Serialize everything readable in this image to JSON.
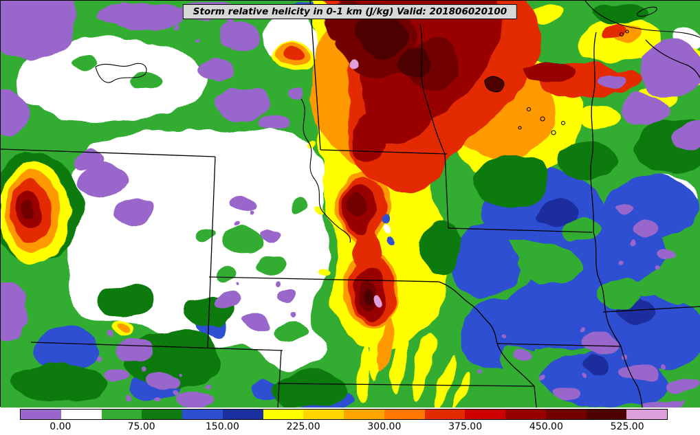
{
  "title_bar": {
    "text": "Storm relative helicity in 0-1 km (J/kg) Valid: 201806020100"
  },
  "chart_data": {
    "type": "heatmap",
    "title": "Storm relative helicity in 0-1 km (J/kg)",
    "valid_time": "201806020100",
    "units": "J/kg",
    "grid": false,
    "colorbar": {
      "orientation": "horizontal",
      "position": "bottom",
      "tick_labels": [
        "0.00",
        "75.00",
        "150.00",
        "225.00",
        "300.00",
        "375.00",
        "450.00",
        "525.00"
      ],
      "tick_values": [
        0,
        75,
        150,
        225,
        300,
        375,
        450,
        525
      ],
      "bin_width": 37.5,
      "range": [
        -37.5,
        562.5
      ],
      "levels": [
        -37.5,
        0,
        37.5,
        75,
        112.5,
        150,
        187.5,
        225,
        262.5,
        300,
        337.5,
        375,
        412.5,
        450,
        487.5,
        525,
        562.5
      ],
      "colors": [
        "#9966cc",
        "#ffffff",
        "#33ad33",
        "#117a11",
        "#2d4fd2",
        "#1b2f9e",
        "#ffff00",
        "#ffd700",
        "#ffa500",
        "#ff7700",
        "#e32b00",
        "#cc0000",
        "#990000",
        "#730000",
        "#4d0000",
        "#dda0dd"
      ]
    },
    "field_summary": [
      "Broad maximum exceeding 450-525 J/kg (dark red / maroon) in the upper-center of the domain, extending east-southeast as a weakening red/orange/yellow band",
      "North-south oriented band of 300-525+ J/kg cores through the center of the domain with small >525 (pink) pockets",
      "Secondary maximum (orange/red core) at the left edge of the domain",
      "Large near-zero region (white, 0-37.5 J/kg) with scattered negative (purple) pockets over the west-central domain",
      "Moderate 75-150 J/kg (blue) region over the right third with scattered purple (negative) speckles",
      "Yellow/green streaks fanning south-southeast from the central band"
    ]
  }
}
